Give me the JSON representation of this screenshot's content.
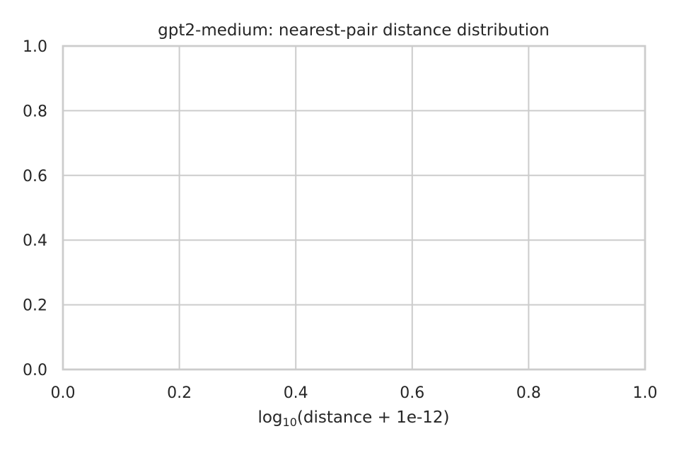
{
  "chart_data": {
    "type": "line",
    "title": "gpt2-medium: nearest-pair distance distribution",
    "xlabel": {
      "prefix": "log",
      "subscript": "10",
      "suffix": "(distance + 1e-12)"
    },
    "ylabel": "",
    "xlim": [
      0.0,
      1.0
    ],
    "ylim": [
      0.0,
      1.0
    ],
    "xticks": [
      "0.0",
      "0.2",
      "0.4",
      "0.6",
      "0.8",
      "1.0"
    ],
    "yticks": [
      "0.0",
      "0.2",
      "0.4",
      "0.6",
      "0.8",
      "1.0"
    ],
    "series": [],
    "grid": true,
    "colors": {
      "grid": "#cccccc",
      "text": "#262626",
      "background": "#ffffff"
    }
  }
}
